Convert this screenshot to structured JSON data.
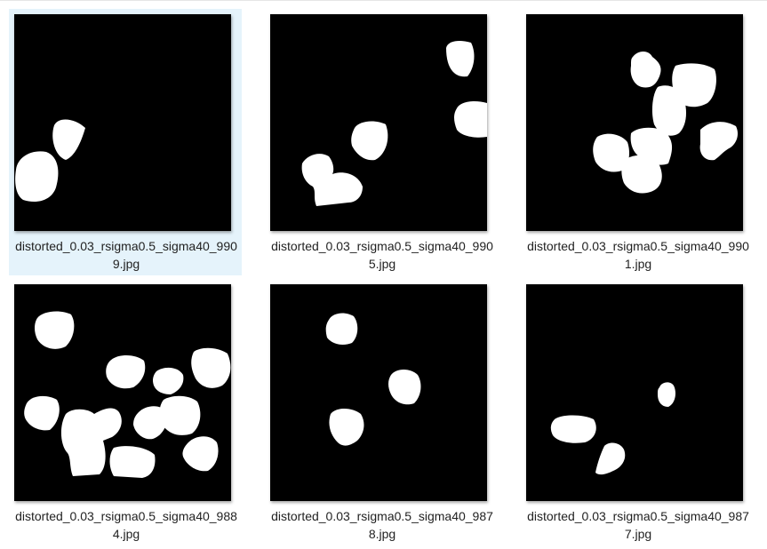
{
  "files": [
    {
      "name_line1": "distorted_0.03_rsigma0.5_sigma40_990",
      "name_line2": "9.jpg",
      "selected": true
    },
    {
      "name_line1": "distorted_0.03_rsigma0.5_sigma40_990",
      "name_line2": "5.jpg",
      "selected": false
    },
    {
      "name_line1": "distorted_0.03_rsigma0.5_sigma40_990",
      "name_line2": "1.jpg",
      "selected": false
    },
    {
      "name_line1": "distorted_0.03_rsigma0.5_sigma40_988",
      "name_line2": "4.jpg",
      "selected": false
    },
    {
      "name_line1": "distorted_0.03_rsigma0.5_sigma40_987",
      "name_line2": "8.jpg",
      "selected": false
    },
    {
      "name_line1": "distorted_0.03_rsigma0.5_sigma40_987",
      "name_line2": "7.jpg",
      "selected": false
    }
  ],
  "colors": {
    "selection": "#e5f3fb",
    "thumb_background": "#000000",
    "blob": "#ffffff"
  }
}
